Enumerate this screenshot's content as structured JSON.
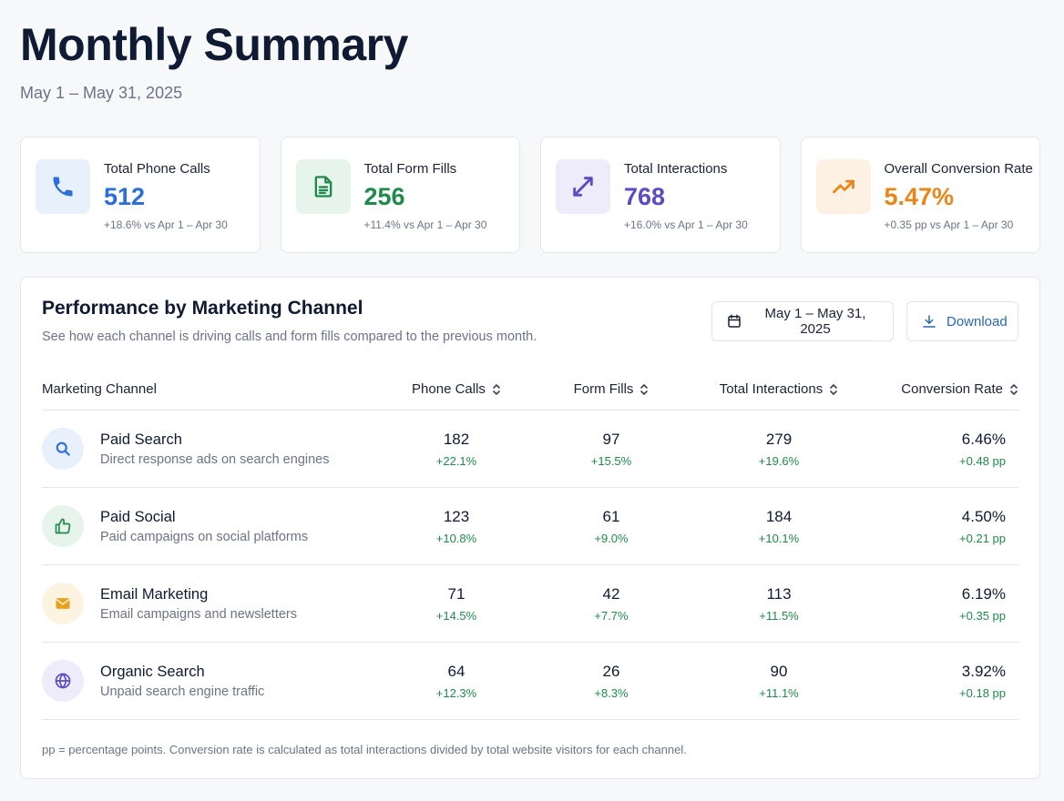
{
  "header": {
    "title": "Monthly Summary",
    "date_range": "May 1 – May 31, 2025"
  },
  "kpis": [
    {
      "label": "Total Phone Calls",
      "value": "512",
      "delta": "+18.6% vs Apr 1 – Apr 30",
      "icon": "phone-icon",
      "color": "#2a6fdb",
      "bg": "#e8f0fc"
    },
    {
      "label": "Total Form Fills",
      "value": "256",
      "delta": "+11.4% vs Apr 1 – Apr 30",
      "icon": "document-icon",
      "color": "#1f8a4c",
      "bg": "#e6f4ec"
    },
    {
      "label": "Total Interactions",
      "value": "768",
      "delta": "+16.0% vs Apr 1 – Apr 30",
      "icon": "arrows-exchange-icon",
      "color": "#5b4bc4",
      "bg": "#eeebfb"
    },
    {
      "label": "Overall Conversion Rate",
      "value": "5.47%",
      "delta": "+0.35 pp vs Apr 1 – Apr 30",
      "icon": "trend-up-icon",
      "color": "#e8861a",
      "bg": "#fdf1e4"
    }
  ],
  "panel": {
    "title": "Performance by Marketing Channel",
    "description": "See how each channel is driving calls and form fills compared to the previous month.",
    "date_button": "May 1 – May 31, 2025",
    "download_button": "Download",
    "columns": [
      "Marketing Channel",
      "Phone Calls",
      "Form Fills",
      "Total Interactions",
      "Conversion Rate"
    ],
    "rows": [
      {
        "name": "Paid Search",
        "desc": "Direct response ads on search engines",
        "icon": "search-icon",
        "icon_color": "#2a6fdb",
        "icon_bg": "#e8f0fc",
        "calls": "182",
        "calls_delta": "+22.1%",
        "forms": "97",
        "forms_delta": "+15.5%",
        "total": "279",
        "total_delta": "+19.6%",
        "rate": "6.46%",
        "rate_delta": "+0.48 pp"
      },
      {
        "name": "Paid Social",
        "desc": "Paid campaigns on social platforms",
        "icon": "thumbs-up-icon",
        "icon_color": "#1f8a4c",
        "icon_bg": "#e6f4ec",
        "calls": "123",
        "calls_delta": "+10.8%",
        "forms": "61",
        "forms_delta": "+9.0%",
        "total": "184",
        "total_delta": "+10.1%",
        "rate": "4.50%",
        "rate_delta": "+0.21 pp"
      },
      {
        "name": "Email Marketing",
        "desc": "Email campaigns and newsletters",
        "icon": "envelope-icon",
        "icon_color": "#e8a21a",
        "icon_bg": "#fdf3e1",
        "calls": "71",
        "calls_delta": "+14.5%",
        "forms": "42",
        "forms_delta": "+7.7%",
        "total": "113",
        "total_delta": "+11.5%",
        "rate": "6.19%",
        "rate_delta": "+0.35 pp"
      },
      {
        "name": "Organic Search",
        "desc": "Unpaid search engine traffic",
        "icon": "globe-icon",
        "icon_color": "#5b4bc4",
        "icon_bg": "#eeebfb",
        "calls": "64",
        "calls_delta": "+12.3%",
        "forms": "26",
        "forms_delta": "+8.3%",
        "total": "90",
        "total_delta": "+11.1%",
        "rate": "3.92%",
        "rate_delta": "+0.18 pp"
      }
    ],
    "footnote": "pp = percentage points. Conversion rate is calculated as total interactions divided by total website visitors for each channel."
  }
}
